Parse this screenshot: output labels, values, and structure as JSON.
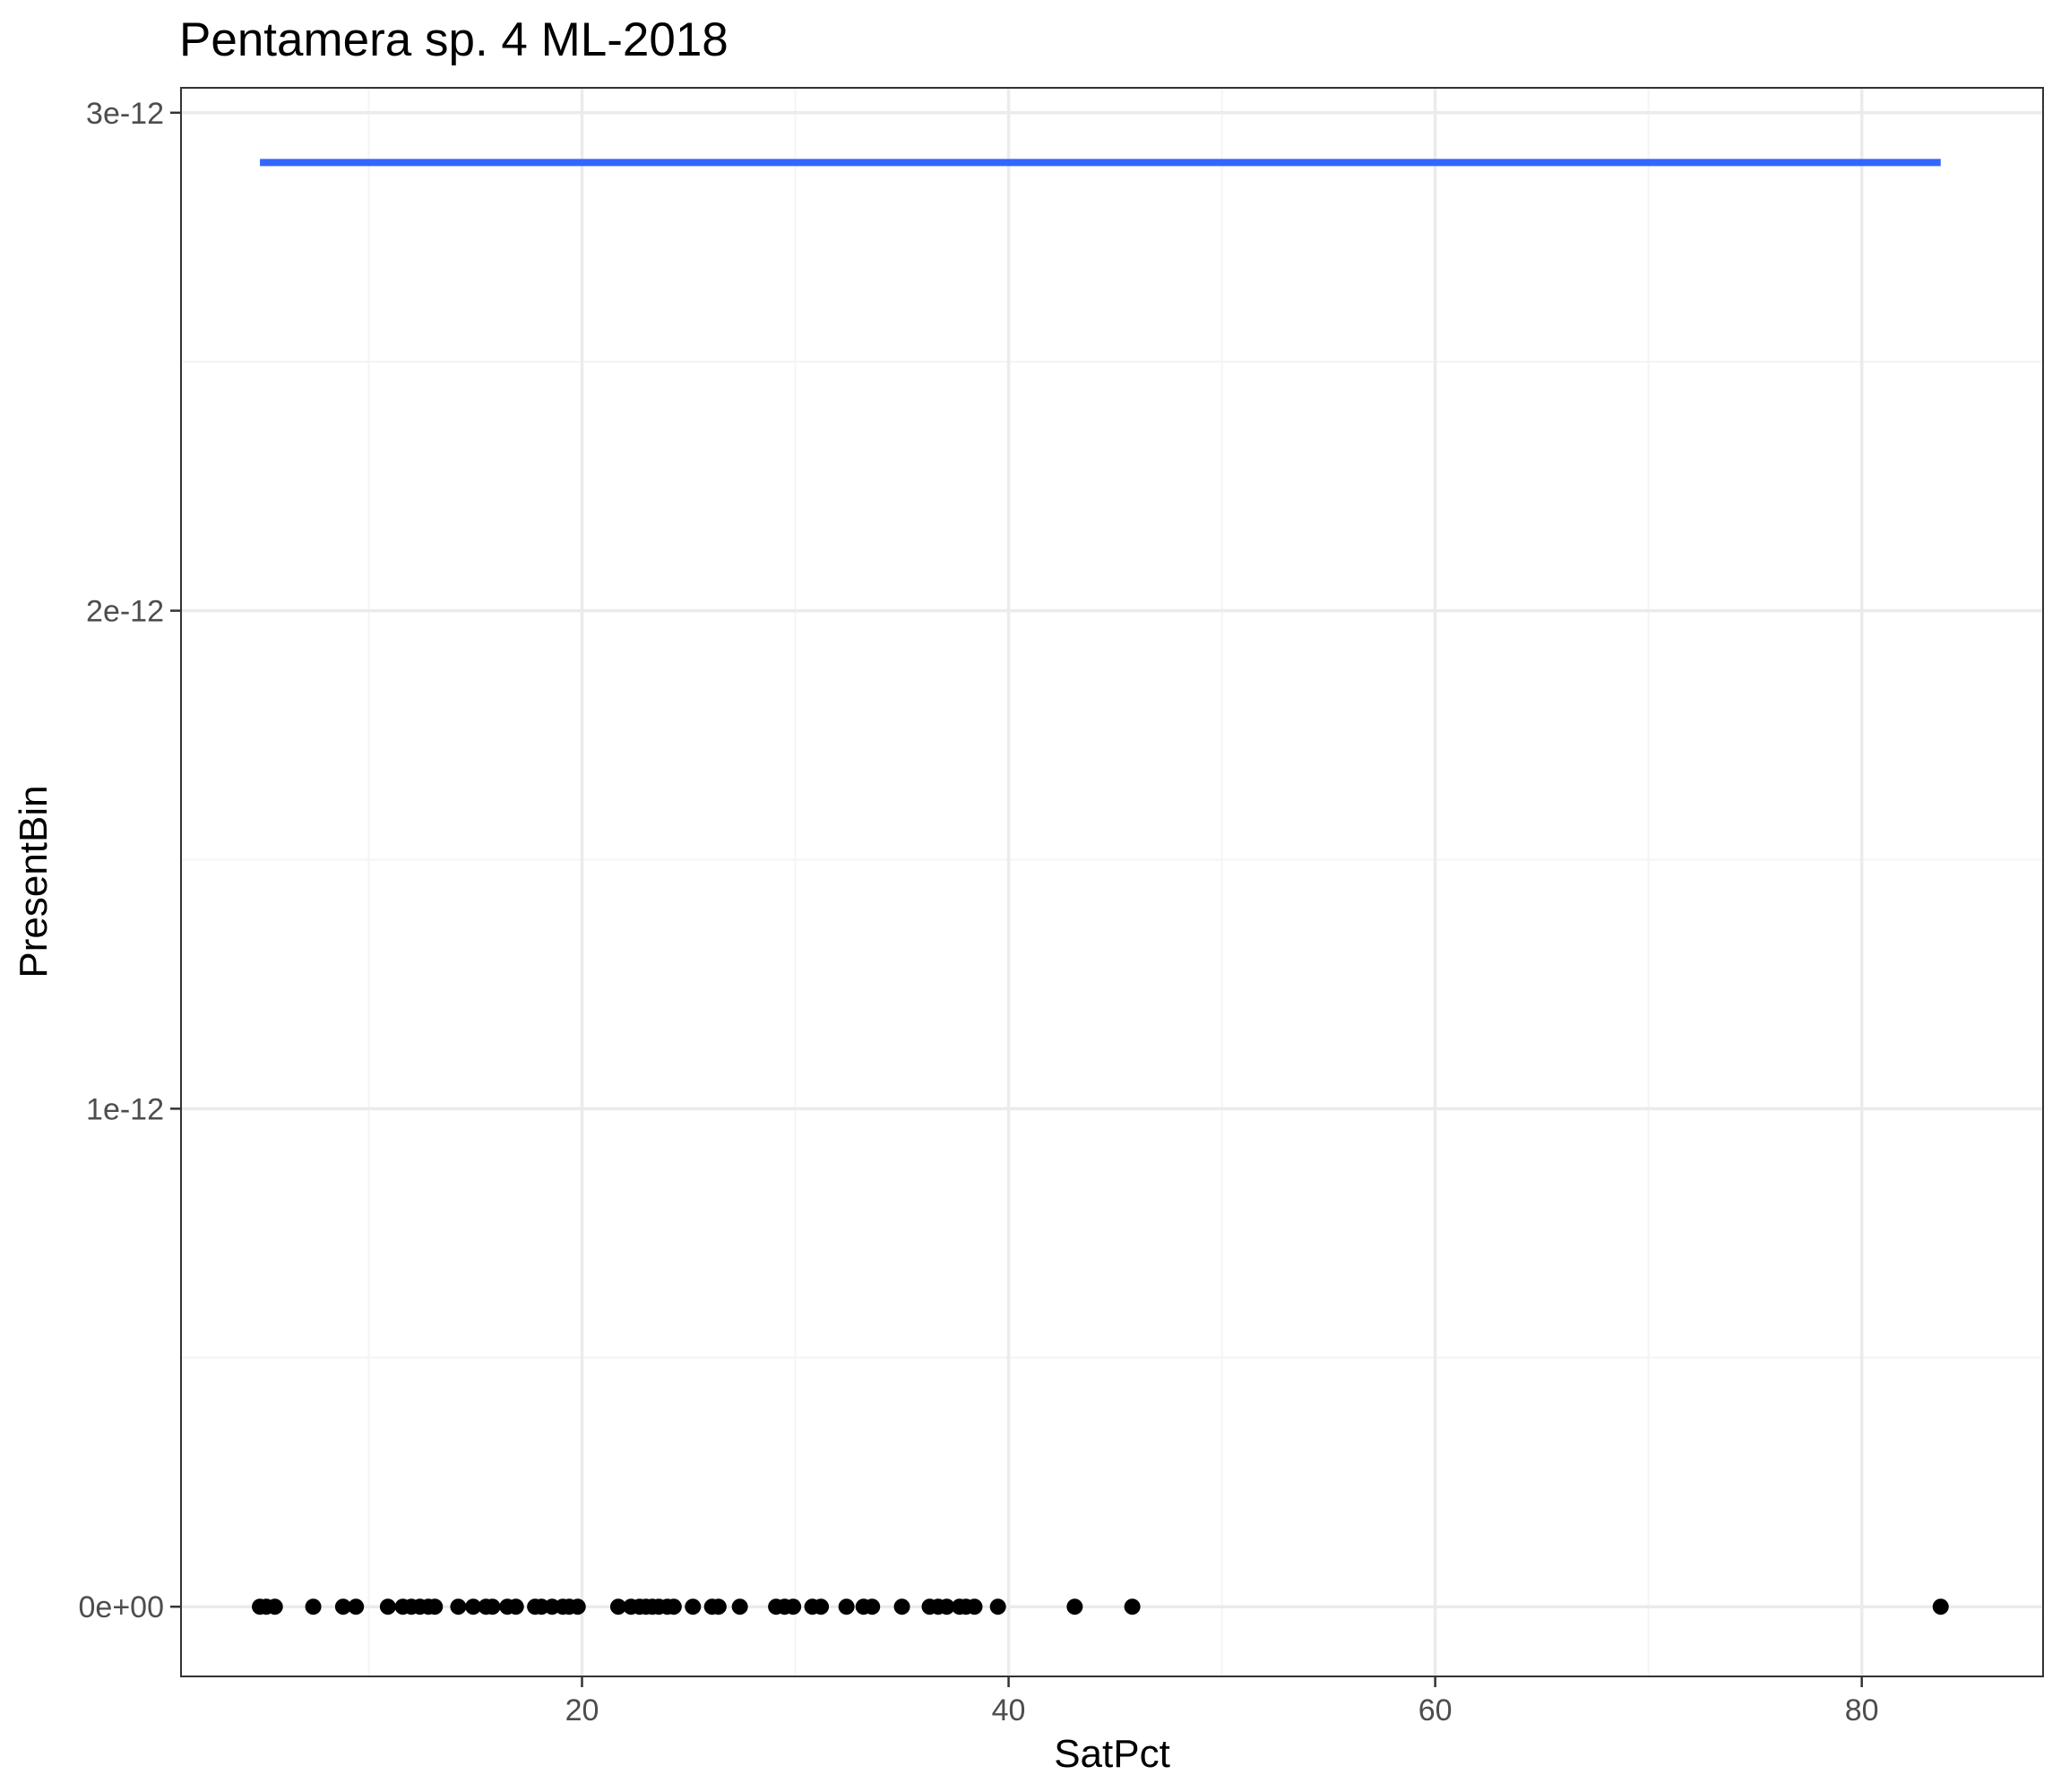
{
  "chart_data": {
    "type": "scatter",
    "title": "Pentamera sp. 4 ML-2018",
    "xlabel": "SatPct",
    "ylabel": "PresentBin",
    "xlim": [
      1.2,
      88.5
    ],
    "ylim": [
      -1.4e-13,
      3.05e-12
    ],
    "x_ticks": [
      20,
      40,
      60,
      80
    ],
    "x_tick_labels": [
      "20",
      "40",
      "60",
      "80"
    ],
    "x_minor_ticks": [
      10,
      30,
      50,
      70
    ],
    "y_ticks": [
      0,
      1e-12,
      2e-12,
      3e-12
    ],
    "y_tick_labels": [
      "0e+00",
      "1e-12",
      "2e-12",
      "3e-12"
    ],
    "y_minor_ticks": [
      5e-13,
      1.5e-12,
      2.5e-12
    ],
    "grid": true,
    "series": [
      {
        "kind": "points",
        "color": "#000000",
        "x": [
          4.9,
          5.2,
          5.6,
          7.4,
          8.8,
          9.4,
          10.9,
          11.6,
          12.0,
          12.4,
          12.8,
          13.1,
          14.2,
          14.9,
          15.5,
          15.8,
          16.5,
          16.9,
          17.8,
          18.1,
          18.6,
          19.1,
          19.4,
          19.8,
          21.7,
          22.3,
          22.7,
          23.0,
          23.3,
          23.6,
          24.0,
          24.3,
          25.2,
          26.1,
          26.4,
          27.4,
          29.1,
          29.5,
          29.9,
          30.8,
          31.2,
          32.4,
          33.2,
          33.6,
          35.0,
          36.3,
          36.7,
          37.1,
          37.7,
          38.0,
          38.4,
          39.5,
          43.1,
          45.8,
          83.7
        ],
        "y": [
          0,
          0,
          0,
          0,
          0,
          0,
          0,
          0,
          0,
          0,
          0,
          0,
          0,
          0,
          0,
          0,
          0,
          0,
          0,
          0,
          0,
          0,
          0,
          0,
          0,
          0,
          0,
          0,
          0,
          0,
          0,
          0,
          0,
          0,
          0,
          0,
          0,
          0,
          0,
          0,
          0,
          0,
          0,
          0,
          0,
          0,
          0,
          0,
          0,
          0,
          0,
          0,
          0,
          0,
          0
        ]
      },
      {
        "kind": "line",
        "color": "#3366ff",
        "x": [
          4.9,
          83.7
        ],
        "y": [
          2.9e-12,
          2.9e-12
        ]
      }
    ]
  },
  "colors": {
    "panel_border": "#333333",
    "grid_major": "#ebebeb",
    "grid_minor": "#f4f4f4",
    "tick_label": "#4d4d4d",
    "points": "#000000",
    "fit_line": "#3366ff"
  }
}
